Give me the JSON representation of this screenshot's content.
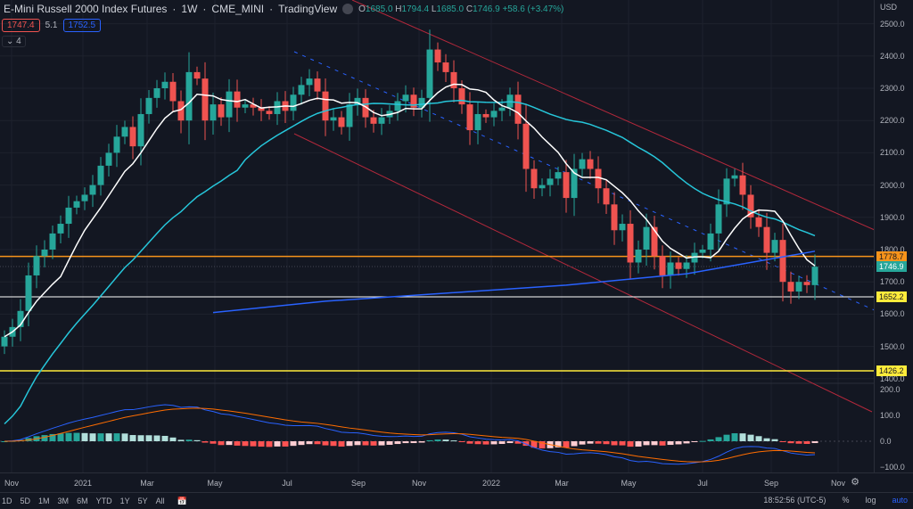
{
  "header": {
    "title": "E-Mini Russell 2000 Index Futures",
    "interval": "1W",
    "exchange": "CME_MINI",
    "source": "TradingView",
    "ohlc": {
      "o_label": "O",
      "o": "1685.0",
      "h_label": "H",
      "h": "1794.4",
      "l_label": "L",
      "l": "1685.0",
      "c_label": "C",
      "c": "1746.9",
      "change": "+58.6 (+3.47%)"
    },
    "bid": "1747.4",
    "spread": "5.1",
    "ask": "1752.5",
    "indicators_collapsed": "4"
  },
  "colors": {
    "up": "#26a69a",
    "down": "#ef5350",
    "bg": "#131722"
  },
  "price_axis": {
    "currency": "USD",
    "labels": [
      "2500.0",
      "2400.0",
      "2300.0",
      "2200.0",
      "2100.0",
      "2000.0",
      "1900.0",
      "1800.0",
      "1700.0",
      "1600.0",
      "1500.0",
      "1400.0"
    ],
    "tags": [
      {
        "value": "1778.7",
        "color": "#f7931a"
      },
      {
        "value": "1746.9",
        "color": "#26a69a"
      },
      {
        "value": "1652.2",
        "color": "#ffeb3b"
      },
      {
        "value": "1426.2",
        "color": "#ffeb3b"
      }
    ]
  },
  "macd_axis": {
    "labels": [
      "200.0",
      "100.0",
      "0.0",
      "−100.0"
    ]
  },
  "time_axis": [
    "Nov",
    "2021",
    "Mar",
    "May",
    "Jul",
    "Sep",
    "Nov",
    "2022",
    "Mar",
    "May",
    "Jul",
    "Sep",
    "Nov"
  ],
  "toolbar": {
    "ranges": [
      "1D",
      "5D",
      "1M",
      "3M",
      "6M",
      "YTD",
      "1Y",
      "5Y",
      "All"
    ],
    "clock": "18:52:56 (UTC-5)",
    "percent": "%",
    "log": "log",
    "auto": "auto"
  },
  "chart_data": {
    "type": "candlestick",
    "closes": [
      1530,
      1560,
      1610,
      1720,
      1780,
      1800,
      1850,
      1880,
      1930,
      1950,
      1970,
      2000,
      2060,
      2100,
      2150,
      2180,
      2120,
      2220,
      2270,
      2300,
      2320,
      2260,
      2200,
      2350,
      2330,
      2200,
      2250,
      2210,
      2290,
      2240,
      2250,
      2240,
      2230,
      2220,
      2260,
      2230,
      2280,
      2310,
      2330,
      2290,
      2200,
      2210,
      2180,
      2250,
      2270,
      2210,
      2190,
      2210,
      2230,
      2260,
      2280,
      2240,
      2270,
      2420,
      2380,
      2350,
      2300,
      2250,
      2170,
      2220,
      2210,
      2230,
      2240,
      2280,
      2190,
      2050,
      1990,
      2000,
      2020,
      2040,
      1960,
      2050,
      2080,
      2050,
      1990,
      1940,
      1860,
      1880,
      1760,
      1800,
      1870,
      1780,
      1720,
      1760,
      1740,
      1760,
      1790,
      1800,
      1850,
      1940,
      2020,
      2030,
      1970,
      1900,
      1870,
      1790,
      1830,
      1700,
      1670,
      1700,
      1690,
      1747
    ],
    "ma200": [
      [
        26,
        1605
      ],
      [
        40,
        1640
      ],
      [
        55,
        1665
      ],
      [
        70,
        1690
      ],
      [
        85,
        1725
      ],
      [
        101,
        1795
      ]
    ]
  }
}
